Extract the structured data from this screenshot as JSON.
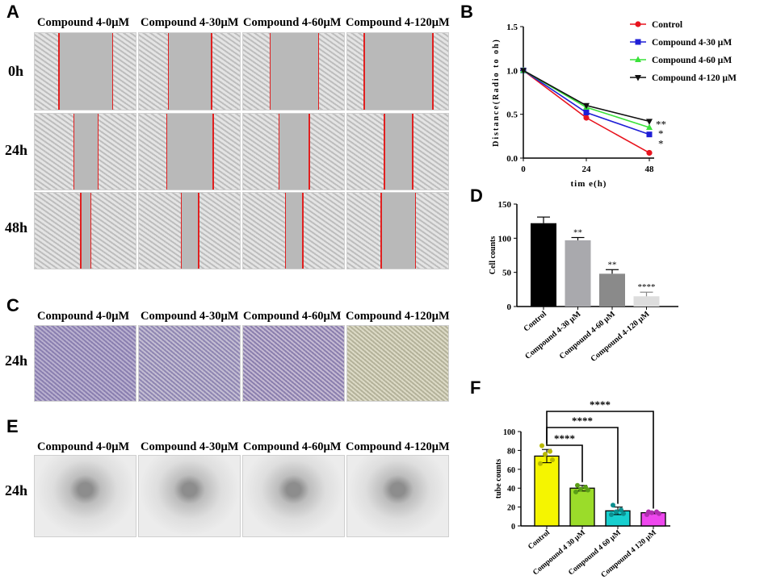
{
  "panels": {
    "A": "A",
    "B": "B",
    "C": "C",
    "D": "D",
    "E": "E",
    "F": "F"
  },
  "column_headers": [
    "Compound 4-0μM",
    "Compound 4-30μM",
    "Compound 4-60μM",
    "Compound 4-120μM"
  ],
  "panel_A": {
    "rows": [
      "0h",
      "24h",
      "48h"
    ],
    "gap_fraction": [
      [
        0.53,
        0.43,
        0.48,
        0.68
      ],
      [
        0.24,
        0.46,
        0.3,
        0.28
      ],
      [
        0.1,
        0.17,
        0.17,
        0.34
      ]
    ]
  },
  "panel_C": {
    "rows": [
      "24h"
    ]
  },
  "panel_E": {
    "rows": [
      "24h"
    ]
  },
  "chart_data": [
    {
      "panel": "B",
      "type": "line",
      "x": [
        0,
        24,
        48
      ],
      "xticks": [
        "0",
        "24",
        "48"
      ],
      "yticks": [
        "0.0",
        "0.5",
        "1.0",
        "1.5"
      ],
      "xlabel": "tim e(h)",
      "ylabel": "Distance(Radio to oh)",
      "ylim": [
        0,
        1.5
      ],
      "legend": "top-right",
      "series": [
        {
          "name": "Control",
          "values": [
            1.0,
            0.46,
            0.06
          ],
          "color": "#e8141e",
          "marker": "circle"
        },
        {
          "name": "Compound 4-30 μM",
          "values": [
            1.0,
            0.52,
            0.27
          ],
          "color": "#1f1fd6",
          "marker": "square"
        },
        {
          "name": "Compound 4-60 μM",
          "values": [
            1.0,
            0.58,
            0.35
          ],
          "color": "#3ae23a",
          "marker": "triangle"
        },
        {
          "name": "Compound 4-120 μM",
          "values": [
            1.0,
            0.6,
            0.42
          ],
          "color": "#111111",
          "marker": "triangle-down"
        }
      ],
      "annotations": [
        "**",
        "*",
        "*"
      ]
    },
    {
      "panel": "D",
      "type": "bar",
      "categories": [
        "Control",
        "Compound 4-30 μM",
        "Compound 4-60 μM",
        "Compound 4-120 μM"
      ],
      "values": [
        122,
        97,
        48,
        15
      ],
      "errors": [
        9,
        4,
        6,
        6
      ],
      "colors": [
        "#000000",
        "#a9a9ad",
        "#8a8a8a",
        "#dddddd"
      ],
      "annotations": [
        "",
        "**",
        "**",
        "****"
      ],
      "ylabel": "Cell counts",
      "yticks": [
        "0",
        "50",
        "100",
        "150"
      ],
      "ylim": [
        0,
        150
      ]
    },
    {
      "panel": "F",
      "type": "bar",
      "categories": [
        "Control",
        "Compound 4 30 μM",
        "Compound 4 60 μM",
        "Compound 4 120 μM"
      ],
      "values": [
        74,
        40,
        16,
        14
      ],
      "errors": [
        7,
        3,
        4,
        1
      ],
      "colors": [
        "#f5f500",
        "#9bdc2a",
        "#17cfcf",
        "#ee47ee"
      ],
      "points": [
        [
          85,
          79,
          76,
          70,
          66
        ],
        [
          43,
          41,
          39,
          38,
          36
        ],
        [
          22,
          17,
          15,
          13,
          12
        ],
        [
          15,
          15,
          14,
          13,
          12
        ]
      ],
      "point_colors": [
        "#b8b800",
        "#5a9e16",
        "#0c8f8f",
        "#b02fb0"
      ],
      "brackets": [
        {
          "from": 0,
          "to": 1,
          "label": "****"
        },
        {
          "from": 0,
          "to": 2,
          "label": "****"
        },
        {
          "from": 0,
          "to": 3,
          "label": "****"
        }
      ],
      "ylabel": "tube counts",
      "yticks": [
        "0",
        "20",
        "40",
        "60",
        "80",
        "100"
      ],
      "ylim": [
        0,
        100
      ]
    }
  ]
}
